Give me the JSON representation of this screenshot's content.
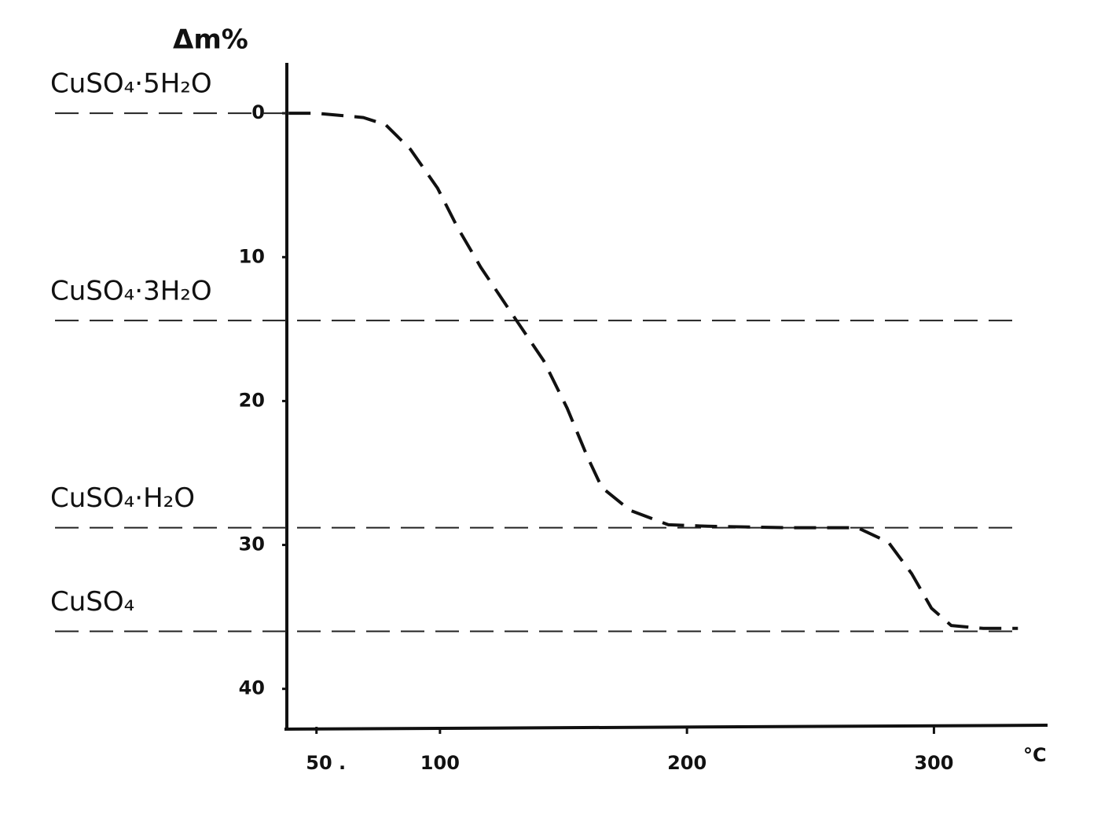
{
  "chart_data": {
    "type": "line",
    "y_title": "Δm%",
    "x_title": "°C",
    "x": [
      38.7,
      50,
      69,
      78,
      88,
      99,
      107,
      116.5,
      129,
      142,
      151.5,
      159.5,
      165.5,
      177,
      192.5,
      208.5,
      240,
      269,
      281.5,
      291,
      299,
      307,
      320,
      334
    ],
    "values": [
      0,
      0,
      0.3,
      0.8,
      2.5,
      5.2,
      7.9,
      10.7,
      13.9,
      17.2,
      20.5,
      23.8,
      26.0,
      27.6,
      28.6,
      28.7,
      28.8,
      28.8,
      29.8,
      32.0,
      34.4,
      35.6,
      35.8,
      35.8
    ],
    "color": "#111111",
    "xlim": [
      38,
      346
    ],
    "ylim": [
      -3.5,
      42.8
    ],
    "y_inverted": true,
    "xticks": [
      {
        "value": 50,
        "label": "50 ."
      },
      100,
      200,
      300
    ],
    "yticks": [
      0,
      10,
      20,
      30,
      40
    ],
    "reference_lines": [
      {
        "label": "CuSO₄·5H₂O",
        "value": 0
      },
      {
        "label": "CuSO₄·3H₂O",
        "value": 14.4
      },
      {
        "label": "CuSO₄·H₂O",
        "value": 28.8
      },
      {
        "label": "CuSO₄",
        "value": 36.0
      }
    ]
  }
}
